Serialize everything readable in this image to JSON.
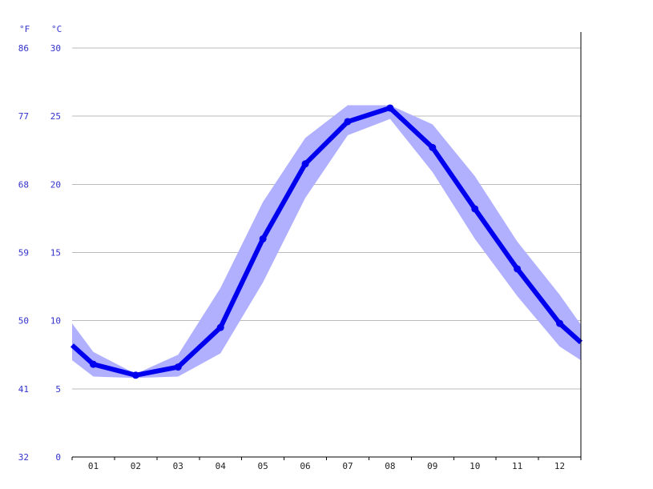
{
  "chart_data": {
    "type": "line",
    "unit_left": "°F",
    "unit_right": "°C",
    "categories": [
      "01",
      "02",
      "03",
      "04",
      "05",
      "06",
      "07",
      "08",
      "09",
      "10",
      "11",
      "12"
    ],
    "ylim": [
      0,
      30
    ],
    "y_ticks_c": [
      0,
      5,
      10,
      15,
      20,
      25,
      30
    ],
    "y_ticks_f": [
      "32",
      "41",
      "50",
      "59",
      "68",
      "77",
      "86"
    ],
    "series": [
      {
        "values": [
          6.8,
          6.0,
          6.6,
          9.5,
          16.0,
          21.5,
          24.6,
          25.6,
          22.7,
          18.2,
          13.8,
          9.8
        ]
      }
    ],
    "band": {
      "upper": [
        7.7,
        6.1,
        7.5,
        12.4,
        18.7,
        23.4,
        25.8,
        25.8,
        24.4,
        20.6,
        15.8,
        11.9
      ],
      "lower": [
        5.9,
        5.8,
        5.9,
        7.6,
        12.8,
        19.0,
        23.6,
        24.8,
        20.9,
        16.0,
        11.8,
        8.1
      ]
    },
    "edges": {
      "start": 8.2,
      "end": 8.4,
      "start_upper": 9.8,
      "start_lower": 7.1,
      "end_upper": 9.7,
      "end_lower": 7.1
    },
    "grid": true,
    "colors": {
      "line": "#0000ee",
      "band": "#b0b0ff",
      "ticks": "#3333cc"
    }
  }
}
